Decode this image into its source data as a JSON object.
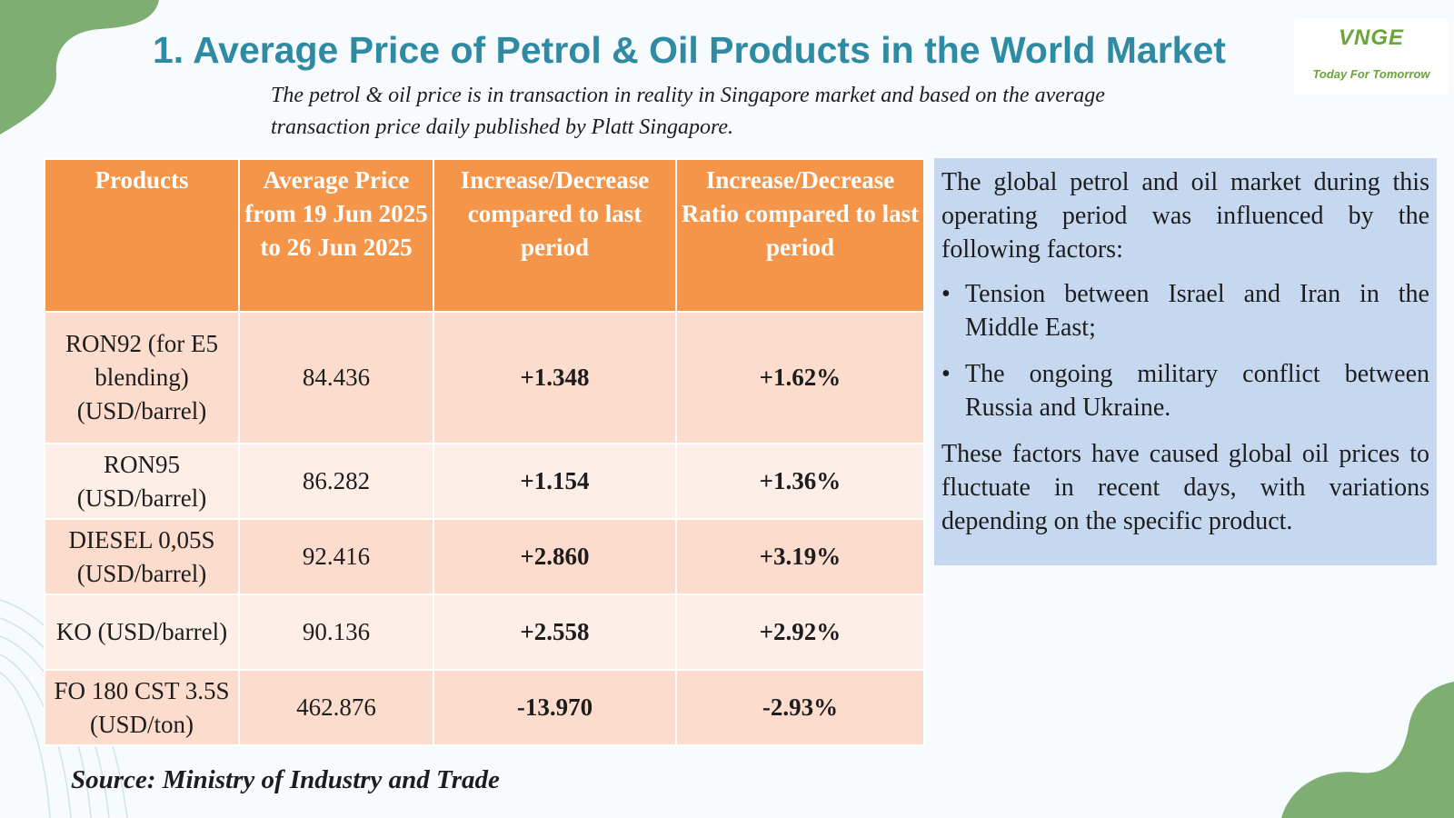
{
  "header": {
    "title": "1. Average Price of Petrol & Oil Products in the World Market",
    "subtitle": "The petrol & oil price is in transaction in reality in Singapore market and based on the average transaction price daily published by Platt Singapore."
  },
  "logo": {
    "brand": "VNGE",
    "tagline": "Today For Tomorrow"
  },
  "table": {
    "headers": [
      "Products",
      "Average Price from 19 Jun 2025 to 26 Jun 2025",
      "Increase/Decrease compared to last period",
      "Increase/Decrease Ratio compared to last period"
    ],
    "rows": [
      {
        "product": "RON92 (for E5 blending) (USD/barrel)",
        "price": "84.436",
        "change": "+1.348",
        "ratio": "+1.62%"
      },
      {
        "product": "RON95 (USD/barrel)",
        "price": "86.282",
        "change": "+1.154",
        "ratio": "+1.36%"
      },
      {
        "product": "DIESEL 0,05S (USD/barrel)",
        "price": "92.416",
        "change": "+2.860",
        "ratio": "+3.19%"
      },
      {
        "product": "KO (USD/barrel)",
        "price": "90.136",
        "change": "+2.558",
        "ratio": "+2.92%"
      },
      {
        "product": "FO 180 CST 3.5S (USD/ton)",
        "price": "462.876",
        "change": "-13.970",
        "ratio": "-2.93%"
      }
    ]
  },
  "side_panel": {
    "intro": "The global petrol and oil market during this operating period was influenced by the following factors:",
    "bullets": [
      "Tension between Israel and Iran in the Middle East;",
      "The ongoing military conflict between Russia and Ukraine."
    ],
    "bullet_symbol": "•",
    "conclusion": "These factors have caused global oil prices to fluctuate in recent days, with variations depending on the specific product."
  },
  "source": "Source: Ministry of Industry and Trade",
  "colors": {
    "title": "#2f8aa3",
    "header_bg": "#f4954a",
    "row_odd": "#fbdccd",
    "row_even": "#fdeee7",
    "increase": "#1aa04d",
    "decrease": "#d4161c",
    "side_bg": "#c5d8ef",
    "decor_green": "#7fae72"
  }
}
